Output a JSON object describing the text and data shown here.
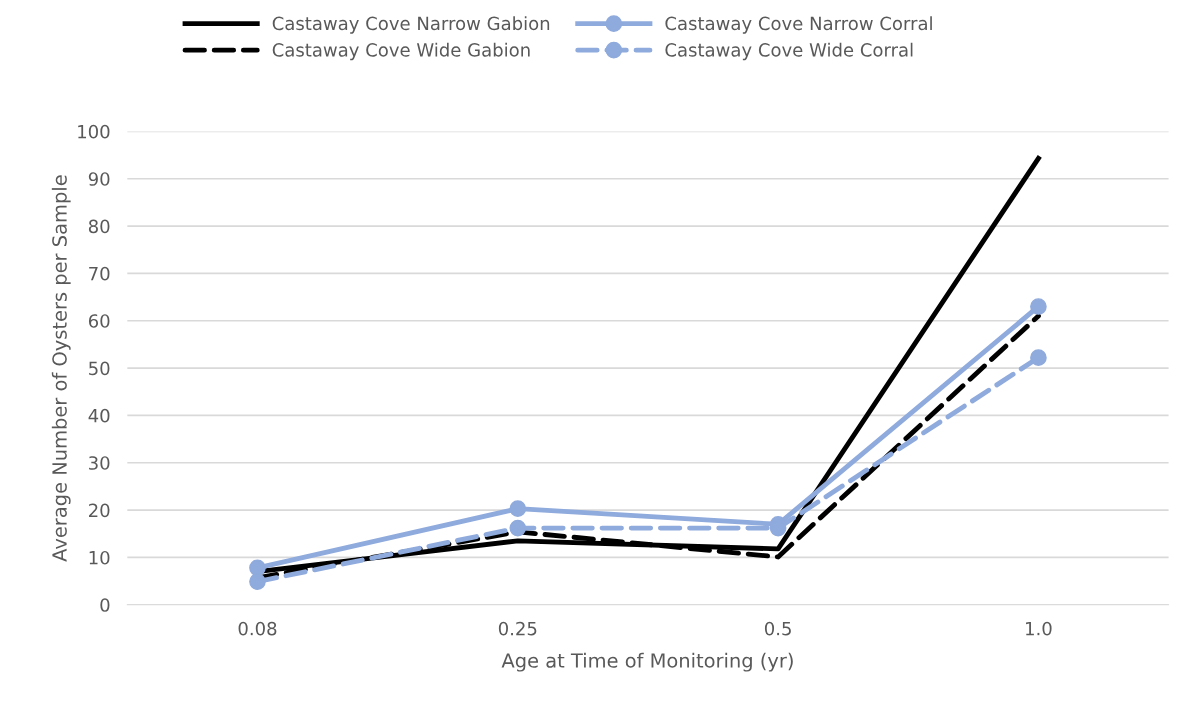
{
  "chart_data": {
    "type": "line",
    "xlabel": "Age at Time of Monitoring (yr)",
    "ylabel": "Average Number of Oysters per Sample",
    "categories": [
      "0.08",
      "0.25",
      "0.5",
      "1.0"
    ],
    "series": [
      {
        "name": "Castaway Cove Narrow Gabion",
        "color": "#000000",
        "values": [
          7,
          13.5,
          11.8,
          94.3
        ],
        "line_style": "solid",
        "marker": "none"
      },
      {
        "name": "Castaway Cove Wide Gabion",
        "color": "#000000",
        "values": [
          5.7,
          15.4,
          10.1,
          61
        ],
        "line_style": "dashed",
        "marker": "none"
      },
      {
        "name": "Castaway Cove Narrow Corral",
        "color": "#8faadc",
        "values": [
          7.8,
          20.3,
          17,
          63
        ],
        "line_style": "solid",
        "marker": "circle"
      },
      {
        "name": "Castaway Cove Wide Corral",
        "color": "#8faadc",
        "values": [
          4.9,
          16.2,
          16.2,
          52.2
        ],
        "line_style": "dashed",
        "marker": "circle"
      }
    ],
    "ylim": [
      0,
      100
    ],
    "yticks": [
      0,
      10,
      20,
      30,
      40,
      50,
      60,
      70,
      80,
      90,
      100
    ],
    "grid": "y",
    "legend": "top"
  }
}
